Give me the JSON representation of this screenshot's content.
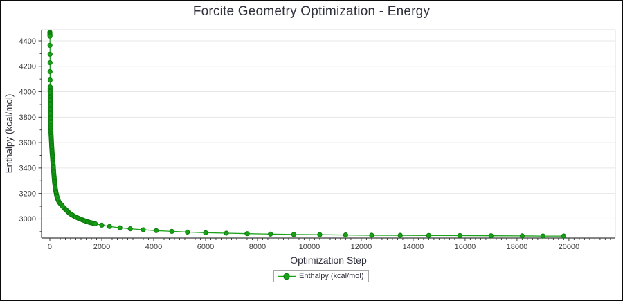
{
  "chart_data": {
    "type": "scatter",
    "title": "Forcite Geometry Optimization - Energy",
    "xlabel": "Optimization Step",
    "ylabel": "Enthalpy (kcal/mol)",
    "xlim": [
      -320,
      21790
    ],
    "ylim": [
      2850,
      4487
    ],
    "x_ticks": [
      0,
      2000,
      4000,
      6000,
      8000,
      10000,
      12000,
      14000,
      16000,
      18000,
      20000
    ],
    "y_ticks": [
      3000,
      3200,
      3400,
      3600,
      3800,
      4000,
      4200,
      4400
    ],
    "x_minor_step": 200,
    "x_minor_max": 21600,
    "y_minor_step": 100,
    "grid": "horizontal-only",
    "legend_position": "bottom-center",
    "series": [
      {
        "name": "Enthalpy (kcal/mol)",
        "marker": "filled-circle",
        "color": "#18a018",
        "points": [
          [
            0,
            4468
          ],
          [
            1,
            4461
          ],
          [
            2,
            4455
          ],
          [
            3,
            4449
          ],
          [
            4,
            4443
          ],
          [
            5,
            4437
          ],
          [
            6,
            4365
          ],
          [
            7,
            4295
          ],
          [
            8,
            4228
          ],
          [
            9,
            4158
          ],
          [
            10,
            4092
          ],
          [
            11,
            4038
          ],
          [
            12,
            4000
          ],
          [
            13,
            3975
          ],
          [
            14,
            3952
          ],
          [
            15,
            3930
          ],
          [
            17,
            3898
          ],
          [
            20,
            3860
          ],
          [
            23,
            3828
          ],
          [
            27,
            3790
          ],
          [
            31,
            3758
          ],
          [
            36,
            3722
          ],
          [
            42,
            3688
          ],
          [
            48,
            3658
          ],
          [
            55,
            3628
          ],
          [
            63,
            3598
          ],
          [
            72,
            3568
          ],
          [
            82,
            3538
          ],
          [
            93,
            3508
          ],
          [
            105,
            3478
          ],
          [
            118,
            3448
          ],
          [
            133,
            3415
          ],
          [
            145,
            3378
          ],
          [
            160,
            3340
          ],
          [
            175,
            3305
          ],
          [
            190,
            3275
          ],
          [
            210,
            3245
          ],
          [
            230,
            3218
          ],
          [
            250,
            3196
          ],
          [
            275,
            3175
          ],
          [
            300,
            3158
          ],
          [
            330,
            3143
          ],
          [
            365,
            3130
          ],
          [
            400,
            3121
          ],
          [
            445,
            3112
          ],
          [
            490,
            3100
          ],
          [
            540,
            3088
          ],
          [
            600,
            3076
          ],
          [
            667,
            3063
          ],
          [
            740,
            3048
          ],
          [
            820,
            3036
          ],
          [
            933,
            3022
          ],
          [
            1050,
            3010
          ],
          [
            1200,
            2997
          ],
          [
            1350,
            2985
          ],
          [
            1550,
            2972
          ],
          [
            1750,
            2962
          ],
          [
            2000,
            2951
          ],
          [
            2300,
            2941
          ],
          [
            2700,
            2931
          ],
          [
            3100,
            2923
          ],
          [
            3600,
            2915
          ],
          [
            4100,
            2908
          ],
          [
            4700,
            2902
          ],
          [
            5300,
            2897
          ],
          [
            6000,
            2892
          ],
          [
            6800,
            2888
          ],
          [
            7600,
            2884
          ],
          [
            8500,
            2881
          ],
          [
            9400,
            2878
          ],
          [
            10400,
            2876
          ],
          [
            11400,
            2874
          ],
          [
            12400,
            2872
          ],
          [
            13500,
            2871
          ],
          [
            14600,
            2870
          ],
          [
            15800,
            2869
          ],
          [
            17000,
            2868
          ],
          [
            18200,
            2867
          ],
          [
            19000,
            2866
          ],
          [
            19800,
            2866
          ]
        ]
      }
    ]
  },
  "colors": {
    "marker_fill": "#18a018",
    "marker_edge": "#0c7c0c",
    "line": "#1aa11a",
    "grid": "#e7e7e7",
    "frame_light": "#dcdcdc",
    "axis": "#3f3f3f",
    "text": "#30303c",
    "tick_text": "#3b3b3b",
    "panel_border": "#0a0a0a",
    "background": "#ffffff"
  }
}
